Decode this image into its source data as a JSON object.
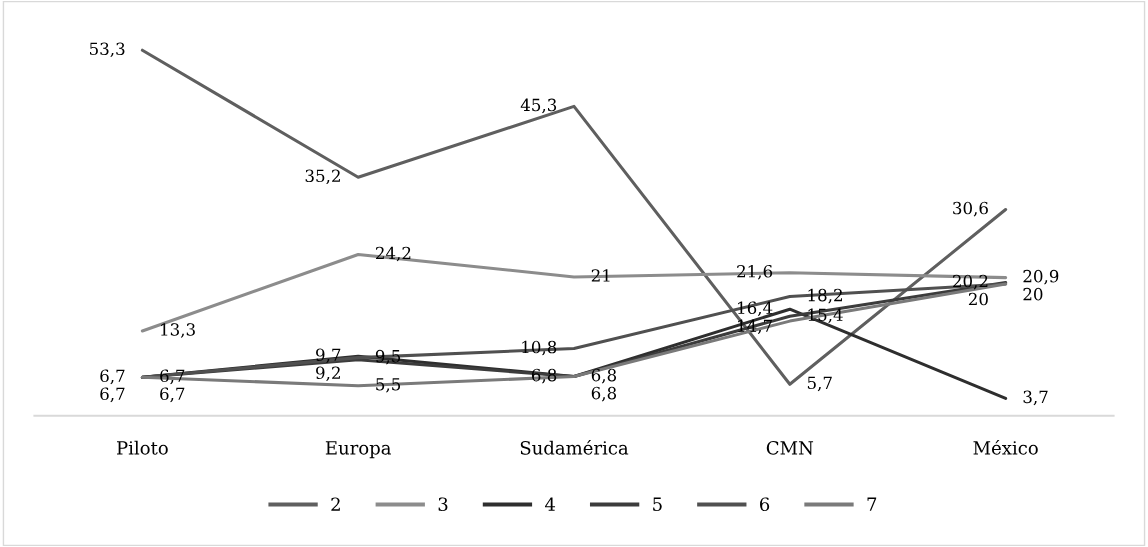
{
  "chart_data": {
    "type": "line",
    "categories": [
      "Piloto",
      "Europa",
      "Sudamérica",
      "CMN",
      "México"
    ],
    "tick_labels": "x",
    "grid": false,
    "legend": "bottom",
    "marker": "none",
    "line_style": "solid",
    "series": [
      {
        "name": "2",
        "color": "#5f5f5f",
        "values": [
          53.3,
          35.2,
          45.3,
          5.7,
          30.6
        ],
        "value_labels": [
          "53,3",
          "35,2",
          "45,3",
          "5,7",
          "30,6"
        ]
      },
      {
        "name": "3",
        "color": "#8c8c8c",
        "values": [
          13.3,
          24.2,
          21,
          21.6,
          20.9
        ],
        "value_labels": [
          "13,3",
          "24,2",
          "21",
          "21,6",
          "20,9"
        ]
      },
      {
        "name": "4",
        "color": "#2e2e2e",
        "values": [
          6.7,
          9.7,
          6.8,
          16.4,
          3.7
        ],
        "value_labels": [
          "6,7",
          "9,7",
          "6,8",
          "16,4",
          "3,7"
        ]
      },
      {
        "name": "5",
        "color": "#3c3c3c",
        "values": [
          6.7,
          9.2,
          6.8,
          15.4,
          20.2
        ],
        "value_labels": [
          "6,7",
          "9,2",
          "6,8",
          "15,4",
          "20,2"
        ]
      },
      {
        "name": "6",
        "color": "#505050",
        "values": [
          6.7,
          9.5,
          10.8,
          18.2,
          20
        ],
        "value_labels": [
          "6,7",
          "9,5",
          "10,8",
          "18,2",
          "20"
        ]
      },
      {
        "name": "7",
        "color": "#7a7a7a",
        "values": [
          6.7,
          5.5,
          6.8,
          14.7,
          20
        ],
        "value_labels": [
          "6,7",
          "5,5",
          "6,8",
          "14,7",
          "20"
        ]
      }
    ]
  }
}
